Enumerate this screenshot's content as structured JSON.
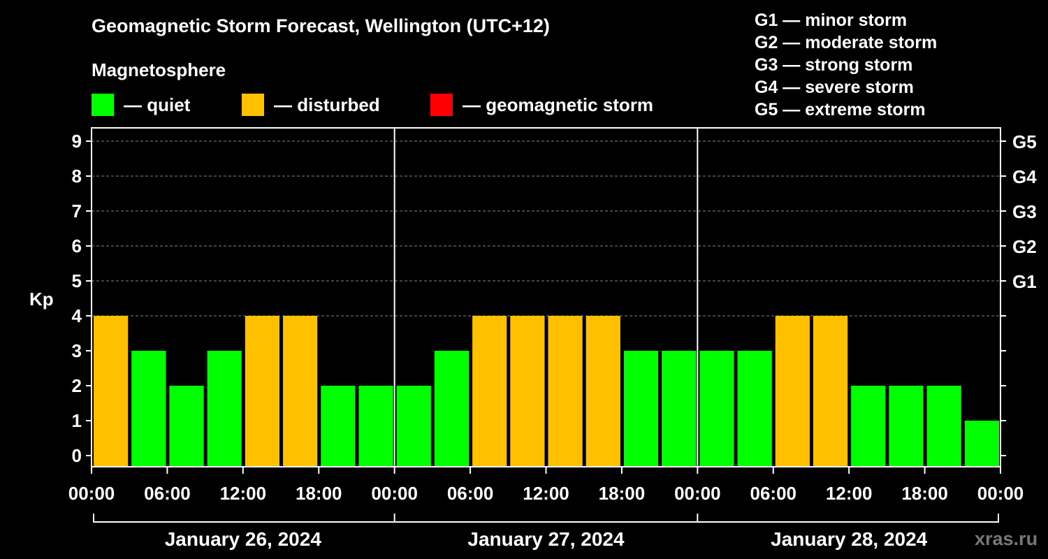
{
  "title": "Geomagnetic Storm Forecast, Wellington (UTC+12)",
  "subtitle": "Magnetosphere",
  "legend": [
    {
      "label": "— quiet",
      "color": "#00ff00"
    },
    {
      "label": "— disturbed",
      "color": "#ffc000"
    },
    {
      "label": "— geomagnetic storm",
      "color": "#ff0000"
    }
  ],
  "storm_scale": [
    "G1 — minor storm",
    "G2 — moderate storm",
    "G3 — strong storm",
    "G4 — severe storm",
    "G5 — extreme storm"
  ],
  "watermark": "xras.ru",
  "colors": {
    "quiet": "#00ff00",
    "disturbed": "#ffc000",
    "storm": "#ff0000",
    "background": "#000000",
    "axis": "#ffffff"
  },
  "chart_data": {
    "type": "bar",
    "title": "Geomagnetic Storm Forecast, Wellington (UTC+12)",
    "ylabel": "Kp",
    "ylim": [
      0,
      9
    ],
    "yticks": [
      "0",
      "1",
      "2",
      "3",
      "4",
      "5",
      "6",
      "7",
      "8",
      "9"
    ],
    "right_ticks": [
      {
        "kp": 5,
        "label": "G1"
      },
      {
        "kp": 6,
        "label": "G2"
      },
      {
        "kp": 7,
        "label": "G3"
      },
      {
        "kp": 8,
        "label": "G4"
      },
      {
        "kp": 9,
        "label": "G5"
      }
    ],
    "xtick_labels": [
      "00:00",
      "06:00",
      "12:00",
      "18:00",
      "00:00",
      "06:00",
      "12:00",
      "18:00",
      "00:00",
      "06:00",
      "12:00",
      "18:00",
      "00:00"
    ],
    "days": [
      "January 26, 2024",
      "January 27, 2024",
      "January 28, 2024"
    ],
    "values": [
      4,
      3,
      2,
      3,
      4,
      4,
      2,
      2,
      2,
      3,
      4,
      4,
      4,
      4,
      3,
      3,
      3,
      3,
      4,
      4,
      2,
      2,
      2,
      1
    ],
    "status": [
      "disturbed",
      "quiet",
      "quiet",
      "quiet",
      "disturbed",
      "disturbed",
      "quiet",
      "quiet",
      "quiet",
      "quiet",
      "disturbed",
      "disturbed",
      "disturbed",
      "disturbed",
      "quiet",
      "quiet",
      "quiet",
      "quiet",
      "disturbed",
      "disturbed",
      "quiet",
      "quiet",
      "quiet",
      "quiet"
    ]
  }
}
